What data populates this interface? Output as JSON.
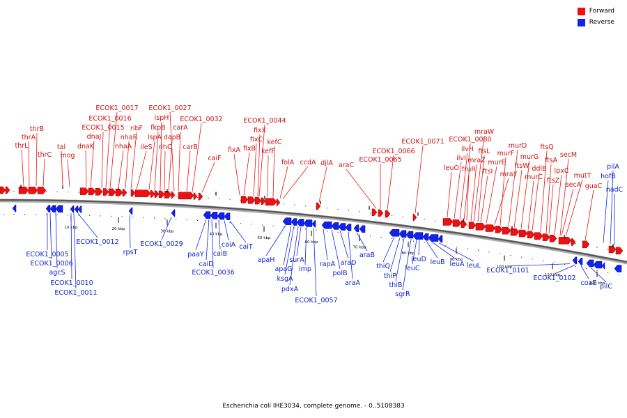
{
  "legend": {
    "forward_label": "Forward",
    "reverse_label": "Reverse",
    "forward_color": "#ee1111",
    "reverse_color": "#1122ee"
  },
  "caption": "Escherichia coli IHE3034, complete genome. - 0..5108383",
  "ruler_ticks": [
    "10 kbp",
    "20 kbp",
    "30 kbp",
    "40 kbp",
    "50 kbp",
    "60 kbp",
    "70 kbp",
    "80 kbp",
    "90 kbp",
    "100 kbp",
    "110 kbp",
    "120 kbp"
  ],
  "forward_genes": [
    "thrL",
    "thrA",
    "thrB",
    "thrC",
    "tal",
    "mog",
    "dnaK",
    "dnaJ",
    "ECOK1_0015",
    "ECOK1_0016",
    "ECOK1_0017",
    "nhaA",
    "nhaR",
    "ribF",
    "ileS",
    "lspA",
    "fkpB",
    "ispH",
    "rihC",
    "dapB",
    "ECOK1_0027",
    "carA",
    "carB",
    "ECOK1_0032",
    "caiF",
    "fixA",
    "fixB",
    "fixC",
    "fixX",
    "ECOK1_0044",
    "kefF",
    "kefC",
    "folA",
    "ccdA",
    "djlA",
    "araC",
    "ECOK1_0065",
    "ECOK1_0066",
    "ECOK1_0071",
    "leuO",
    "ilvI",
    "ilvH",
    "fruR",
    "ECOK1_0080",
    "mraZ",
    "ftsL",
    "ftsI",
    "mraW",
    "murE",
    "mraY",
    "murF",
    "murD",
    "ftsW",
    "murG",
    "murC",
    "ddlB",
    "ftsQ",
    "ftsA",
    "ftsZ",
    "lpxC",
    "secM",
    "secA",
    "mutT",
    "guaC"
  ],
  "reverse_genes": [
    "ECOK1_0005",
    "ECOK1_0006",
    "agcS",
    "ECOK1_0010",
    "ECOK1_0011",
    "ECOK1_0012",
    "rpsT",
    "ECOK1_0029",
    "paaY",
    "caiD",
    "ECOK1_0036",
    "caiB",
    "caiA",
    "caiT",
    "apaH",
    "apaG",
    "ksgA",
    "pdxA",
    "surA",
    "imp",
    "ECOK1_0057",
    "rapA",
    "polB",
    "araD",
    "araA",
    "araB",
    "thiQ",
    "thiP",
    "thiB",
    "sgrR",
    "leuD",
    "leuC",
    "leuB",
    "leuA",
    "leuL",
    "ECOK1_0101",
    "ECOK1_0102",
    "coaE",
    "pilC",
    "hofB",
    "pilA",
    "nadC"
  ]
}
